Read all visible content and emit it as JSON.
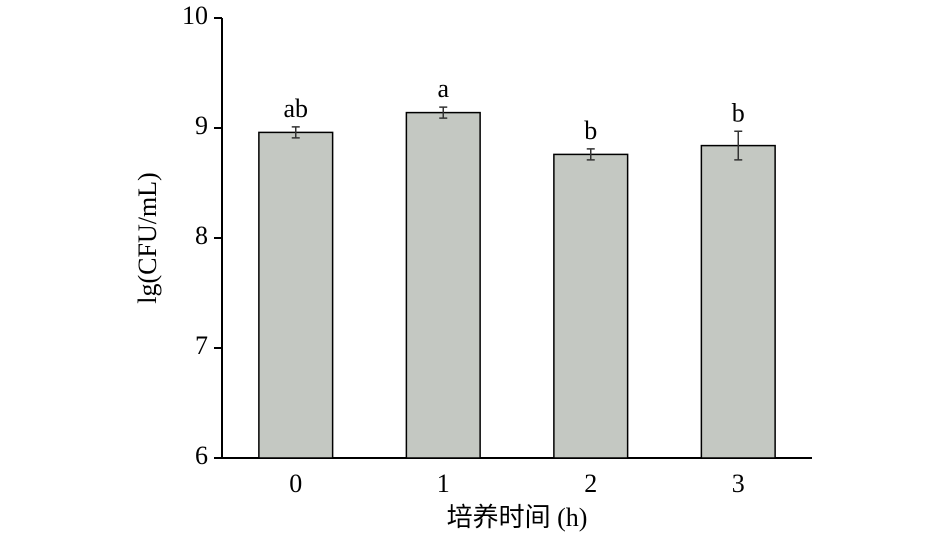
{
  "chart_data": {
    "type": "bar",
    "x_label": "培养时间 (h)",
    "y_label": "lg(CFU/mL)",
    "categories": [
      "0",
      "1",
      "2",
      "3"
    ],
    "values": [
      8.96,
      9.14,
      8.76,
      8.84
    ],
    "errors": [
      0.05,
      0.05,
      0.05,
      0.13
    ],
    "annotations": [
      "ab",
      "a",
      "b",
      "b"
    ],
    "color": "#c4c8c2",
    "ylim": [
      6,
      10
    ],
    "yticks": [
      6,
      7,
      8,
      9,
      10
    ]
  }
}
